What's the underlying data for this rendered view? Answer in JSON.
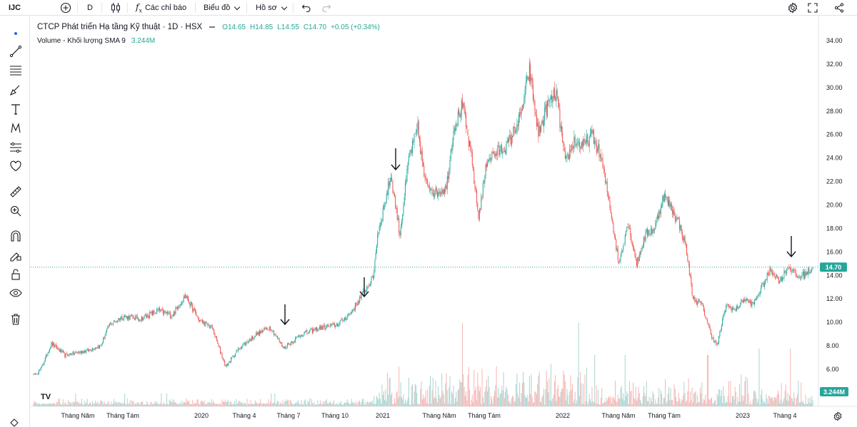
{
  "toolbar": {
    "symbol": "IJC",
    "interval": "D",
    "indicators_label": "Các chỉ báo",
    "chart_label": "Biểu đồ",
    "profile_label": "Hồ sơ"
  },
  "legend": {
    "title": "CTCP Phát triển Hạ tầng Kỹ thuật · 1D · HSX",
    "open": "O14.65",
    "high": "H14.85",
    "low": "L14.55",
    "close": "C14.70",
    "change": "+0.05 (+0.34%)",
    "volume_title": "Volume - Khối lượng SMA 9",
    "volume_value": "3.244M"
  },
  "price_axis": {
    "ticks": [
      "34.00",
      "32.00",
      "30.00",
      "28.00",
      "26.00",
      "24.00",
      "22.00",
      "20.00",
      "18.00",
      "16.00",
      "14.00",
      "12.00",
      "10.00",
      "8.00",
      "6.00"
    ],
    "last_price": "14.70",
    "volume_badge": "3.244M"
  },
  "time_axis": {
    "ticks": [
      "Tháng Năm",
      "Tháng Tám",
      "2020",
      "Tháng 4",
      "Tháng 7",
      "Tháng 10",
      "2021",
      "Tháng Năm",
      "Tháng Tám",
      "2022",
      "Tháng Năm",
      "Tháng Tám",
      "2023",
      "Tháng 4"
    ]
  },
  "logo": "TV",
  "colors": {
    "up": "#26a69a",
    "down": "#ef5350",
    "vol_up": "#a8d5d0",
    "vol_down": "#f5b6b4",
    "last": "#26a69a"
  },
  "chart_data": {
    "type": "candlestick",
    "ylim": [
      5,
      35
    ],
    "anchors": [
      [
        0,
        5.4
      ],
      [
        8,
        6.0
      ],
      [
        20,
        8.2
      ],
      [
        35,
        7.2
      ],
      [
        60,
        7.6
      ],
      [
        75,
        8.0
      ],
      [
        85,
        9.8
      ],
      [
        100,
        10.5
      ],
      [
        120,
        10.3
      ],
      [
        140,
        11.0
      ],
      [
        155,
        10.6
      ],
      [
        170,
        12.3
      ],
      [
        185,
        10.2
      ],
      [
        200,
        9.5
      ],
      [
        215,
        6.2
      ],
      [
        230,
        7.8
      ],
      [
        250,
        9.0
      ],
      [
        265,
        9.6
      ],
      [
        280,
        7.8
      ],
      [
        300,
        9.0
      ],
      [
        320,
        9.5
      ],
      [
        340,
        9.8
      ],
      [
        355,
        10.8
      ],
      [
        370,
        12.6
      ],
      [
        380,
        13.8
      ],
      [
        385,
        17.5
      ],
      [
        392,
        19.8
      ],
      [
        400,
        22.5
      ],
      [
        410,
        17.5
      ],
      [
        420,
        24.0
      ],
      [
        430,
        26.5
      ],
      [
        438,
        22.0
      ],
      [
        450,
        21.0
      ],
      [
        462,
        21.5
      ],
      [
        470,
        26.5
      ],
      [
        480,
        28.5
      ],
      [
        490,
        24.0
      ],
      [
        498,
        19.0
      ],
      [
        508,
        24.0
      ],
      [
        520,
        24.5
      ],
      [
        530,
        25.0
      ],
      [
        545,
        27.5
      ],
      [
        555,
        31.5
      ],
      [
        565,
        26.0
      ],
      [
        575,
        28.5
      ],
      [
        585,
        29.5
      ],
      [
        595,
        23.5
      ],
      [
        605,
        25.5
      ],
      [
        615,
        25.0
      ],
      [
        625,
        26.0
      ],
      [
        635,
        24.0
      ],
      [
        645,
        20.0
      ],
      [
        655,
        15.0
      ],
      [
        665,
        18.5
      ],
      [
        675,
        15.0
      ],
      [
        685,
        17.5
      ],
      [
        695,
        18.0
      ],
      [
        705,
        20.8
      ],
      [
        712,
        20.0
      ],
      [
        722,
        18.5
      ],
      [
        730,
        16.5
      ],
      [
        738,
        12.0
      ],
      [
        748,
        11.5
      ],
      [
        758,
        9.0
      ],
      [
        765,
        8.0
      ],
      [
        775,
        11.5
      ],
      [
        785,
        11.0
      ],
      [
        795,
        12.0
      ],
      [
        805,
        11.5
      ],
      [
        815,
        13.0
      ],
      [
        825,
        14.5
      ],
      [
        835,
        13.5
      ],
      [
        845,
        14.8
      ],
      [
        855,
        13.8
      ],
      [
        865,
        14.2
      ],
      [
        872,
        14.7
      ]
    ],
    "annotations": [
      "down-arrow",
      "down-arrow",
      "down-arrow",
      "down-arrow"
    ]
  }
}
